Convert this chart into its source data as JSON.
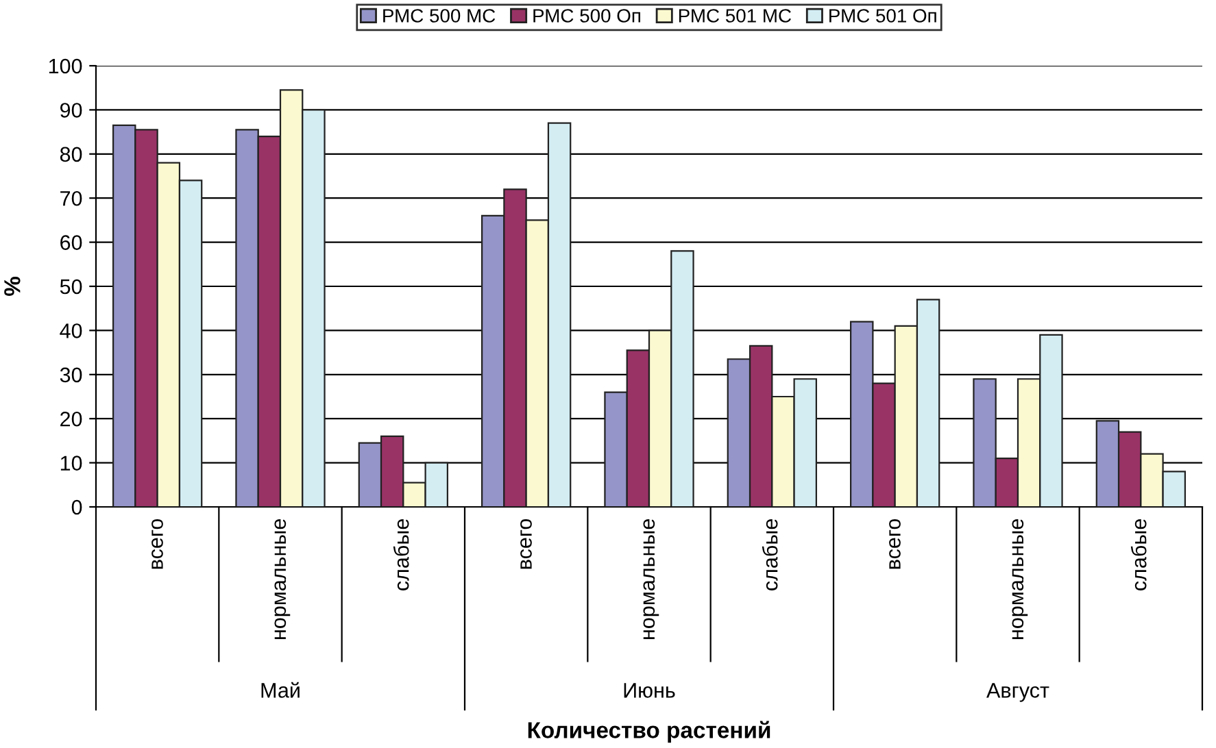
{
  "chart_data": {
    "type": "bar",
    "xlabel": "Количество растений",
    "ylabel": "%",
    "categories": [
      "всего",
      "нормальные",
      "слабые",
      "всего",
      "нормальные",
      "слабые",
      "всего",
      "нормальные",
      "слабые"
    ],
    "annotations": [
      "Май",
      "Июнь",
      "Август"
    ],
    "series": [
      {
        "name": "РМС 500 МС",
        "color": "#9595c9",
        "values": [
          86.5,
          85.5,
          14.5,
          66,
          26,
          33.5,
          42,
          29,
          19.5
        ]
      },
      {
        "name": "РМС 500 Оп",
        "color": "#993366",
        "values": [
          85.5,
          84,
          16,
          72,
          35.5,
          36.5,
          28,
          11,
          17
        ]
      },
      {
        "name": "РМС 501 МС",
        "color": "#fbf9cf",
        "values": [
          78,
          94.5,
          5.5,
          65,
          40,
          25,
          41,
          29,
          12
        ]
      },
      {
        "name": "РМС 501 Оп",
        "color": "#d3edf3",
        "values": [
          74,
          90,
          10,
          87,
          58,
          29,
          47,
          39,
          8
        ]
      }
    ],
    "ylim": [
      0,
      100
    ],
    "yticks": [
      0,
      10,
      20,
      30,
      40,
      50,
      60,
      70,
      80,
      90,
      100
    ],
    "grid": "y",
    "legend": "top"
  }
}
